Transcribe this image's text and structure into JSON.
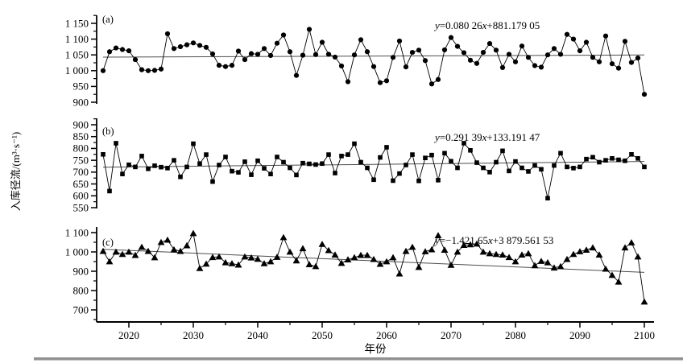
{
  "figure": {
    "description": "Three-panel time series of projected reservoir inflow runoff, 2016-2100, with linear trend lines",
    "colors": {
      "series": "#000000",
      "trend": "#4d4d4d",
      "equation": "#1d1d30",
      "axis": "#000000",
      "bottom_rule": "#919191",
      "background": "#ffffff"
    }
  },
  "axes": {
    "xlabel": "年份",
    "ylabel": "入库径流/(m³·s⁻¹)",
    "xlim": [
      2015,
      2101.5
    ],
    "xticks_major": [
      2020,
      2030,
      2040,
      2050,
      2060,
      2070,
      2080,
      2090,
      2100
    ],
    "xticks_minor": [
      2025,
      2035,
      2045,
      2055,
      2065,
      2075,
      2085,
      2095
    ],
    "grid": "off",
    "legend": "none"
  },
  "chart_data": [
    {
      "panel_label": "(a)",
      "type": "line",
      "marker": "circle",
      "equation": "y=0.080 26x+881.179 05",
      "trend": {
        "slope": 0.08026,
        "intercept": 881.17905
      },
      "ylim": [
        900,
        1150
      ],
      "yticks_major": [
        1150,
        1100,
        1050,
        1000,
        950,
        900
      ],
      "ytick_labels": [
        "1 150",
        "1 100",
        "1 050",
        "1 000",
        "950",
        "900"
      ],
      "yticks_minor": [
        1175,
        1125,
        1075,
        1025,
        975,
        925
      ],
      "x": {
        "start": 2016,
        "end": 2100,
        "step": 1
      },
      "values": [
        1000,
        1060,
        1072,
        1067,
        1063,
        1035,
        1003,
        1000,
        1001,
        1005,
        1117,
        1070,
        1076,
        1082,
        1088,
        1080,
        1074,
        1053,
        1017,
        1013,
        1017,
        1062,
        1035,
        1054,
        1052,
        1070,
        1048,
        1087,
        1113,
        1060,
        985,
        1049,
        1131,
        1051,
        1090,
        1052,
        1043,
        1015,
        965,
        1050,
        1098,
        1060,
        1013,
        962,
        968,
        1042,
        1094,
        1012,
        1058,
        1065,
        1032,
        958,
        972,
        1066,
        1105,
        1077,
        1057,
        1033,
        1023,
        1058,
        1086,
        1065,
        1010,
        1052,
        1028,
        1078,
        1042,
        1016,
        1011,
        1050,
        1070,
        1052,
        1115,
        1100,
        1063,
        1090,
        1042,
        1028,
        1110,
        1022,
        1008,
        1093,
        1026,
        1040,
        925
      ]
    },
    {
      "panel_label": "(b)",
      "type": "line",
      "marker": "square",
      "equation": "y=0.291 39x+133.191 47",
      "trend": {
        "slope": 0.29139,
        "intercept": 133.19147
      },
      "ylim": [
        550,
        900
      ],
      "yticks_major": [
        900,
        850,
        800,
        750,
        700,
        650,
        600,
        550
      ],
      "ytick_labels": [
        "900",
        "850",
        "800",
        "750",
        "700",
        "650",
        "600",
        "550"
      ],
      "yticks_minor": [
        925,
        875,
        825,
        775,
        725,
        675,
        625,
        575
      ],
      "x": {
        "start": 2016,
        "end": 2100,
        "step": 1
      },
      "values": [
        775,
        620,
        822,
        692,
        731,
        722,
        768,
        714,
        727,
        721,
        717,
        750,
        680,
        722,
        820,
        736,
        774,
        660,
        730,
        764,
        704,
        699,
        744,
        689,
        748,
        716,
        692,
        764,
        742,
        718,
        688,
        738,
        735,
        732,
        736,
        774,
        696,
        768,
        774,
        820,
        742,
        718,
        668,
        762,
        805,
        664,
        694,
        730,
        774,
        663,
        760,
        772,
        666,
        780,
        746,
        718,
        822,
        792,
        740,
        718,
        700,
        742,
        790,
        705,
        745,
        718,
        703,
        728,
        712,
        590,
        728,
        780,
        722,
        717,
        722,
        755,
        763,
        742,
        750,
        758,
        752,
        748,
        775,
        758,
        722
      ]
    },
    {
      "panel_label": "(c)",
      "type": "line",
      "marker": "triangle",
      "equation": "y=−1.421 65x+3 879.561 53",
      "trend": {
        "slope": -1.42165,
        "intercept": 3879.56153
      },
      "ylim": [
        700,
        1100
      ],
      "yticks_major": [
        1100,
        1000,
        900,
        800,
        700
      ],
      "ytick_labels": [
        "1 100",
        "1 000",
        "900",
        "800",
        "700"
      ],
      "yticks_minor": [
        1050,
        950,
        850,
        750,
        650
      ],
      "x": {
        "start": 2016,
        "end": 2100,
        "step": 1
      },
      "values": [
        1004,
        950,
        1000,
        988,
        1000,
        983,
        1025,
        1004,
        971,
        1050,
        1062,
        1012,
        1004,
        1033,
        1096,
        915,
        938,
        972,
        975,
        945,
        940,
        933,
        975,
        970,
        963,
        940,
        950,
        973,
        1075,
        1000,
        955,
        1018,
        935,
        925,
        1040,
        1008,
        985,
        942,
        960,
        971,
        983,
        983,
        962,
        937,
        950,
        971,
        887,
        1004,
        1025,
        921,
        1002,
        1012,
        1085,
        1010,
        932,
        1000,
        1035,
        1038,
        1042,
        1000,
        992,
        988,
        985,
        972,
        950,
        985,
        992,
        930,
        952,
        945,
        918,
        925,
        962,
        988,
        1002,
        1010,
        1022,
        985,
        912,
        880,
        845,
        1022,
        1048,
        975,
        742
      ]
    }
  ]
}
